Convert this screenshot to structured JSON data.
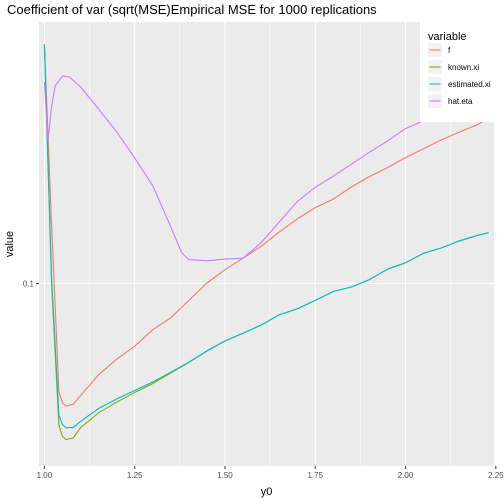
{
  "chart_data": {
    "type": "line",
    "title": "Coefficient of var (sqrt(MSE)Empirical MSE for 1000 replications",
    "xlabel": "y0",
    "ylabel": "value",
    "xlim": [
      0.985,
      2.245
    ],
    "y_scale": "log10",
    "ylim": [
      0.05,
      0.27
    ],
    "x_ticks": [
      1.0,
      1.25,
      1.5,
      1.75,
      2.0,
      2.25
    ],
    "x_tick_labels": [
      "1.00",
      "1.25",
      "1.50",
      "1.75",
      "2.00",
      "2.25"
    ],
    "y_ticks": [
      0.1
    ],
    "y_tick_labels": [
      "0.1"
    ],
    "grid": true,
    "legend": {
      "title": "variable",
      "position": "top-right"
    },
    "series": [
      {
        "name": "f",
        "color": "#F8766D",
        "x": [
          1.0,
          1.02,
          1.04,
          1.05,
          1.06,
          1.08,
          1.1,
          1.15,
          1.2,
          1.25,
          1.3,
          1.35,
          1.4,
          1.45,
          1.5,
          1.55,
          1.6,
          1.65,
          1.7,
          1.75,
          1.8,
          1.85,
          1.9,
          1.95,
          2.0,
          2.05,
          2.1,
          2.15,
          2.2,
          2.23
        ],
        "y": [
          0.248,
          0.125,
          0.0663,
          0.0635,
          0.0628,
          0.0632,
          0.0653,
          0.0707,
          0.075,
          0.0788,
          0.0839,
          0.0878,
          0.0938,
          0.1002,
          0.1054,
          0.1101,
          0.1152,
          0.1215,
          0.1278,
          0.1334,
          0.1378,
          0.1443,
          0.1501,
          0.1553,
          0.1613,
          0.1668,
          0.1727,
          0.1778,
          0.1829,
          0.1876
        ]
      },
      {
        "name": "known.xi",
        "color": "#7CAE00",
        "x": [
          1.0,
          1.02,
          1.04,
          1.05,
          1.06,
          1.08,
          1.1,
          1.15,
          1.2,
          1.25,
          1.3,
          1.35,
          1.4,
          1.45,
          1.5,
          1.55,
          1.6,
          1.65,
          1.7,
          1.75,
          1.8,
          1.85,
          1.9,
          1.95,
          2.0,
          2.05,
          2.1,
          2.15,
          2.2,
          2.23
        ],
        "y": [
          0.248,
          0.1,
          0.0584,
          0.0559,
          0.0553,
          0.0556,
          0.0578,
          0.0612,
          0.0637,
          0.0661,
          0.0684,
          0.0712,
          0.0741,
          0.0774,
          0.0804,
          0.0828,
          0.0854,
          0.0888,
          0.0908,
          0.0938,
          0.097,
          0.0987,
          0.1015,
          0.1056,
          0.1082,
          0.1122,
          0.1145,
          0.1176,
          0.1201,
          0.1213
        ]
      },
      {
        "name": "estimated.xi",
        "color": "#00BFC4",
        "x": [
          1.0,
          1.02,
          1.04,
          1.05,
          1.06,
          1.08,
          1.1,
          1.15,
          1.2,
          1.25,
          1.3,
          1.35,
          1.4,
          1.45,
          1.5,
          1.55,
          1.6,
          1.65,
          1.7,
          1.75,
          1.8,
          1.85,
          1.9,
          1.95,
          2.0,
          2.05,
          2.1,
          2.15,
          2.2,
          2.23
        ],
        "y": [
          0.248,
          0.102,
          0.0607,
          0.0585,
          0.0578,
          0.0579,
          0.0592,
          0.0622,
          0.0645,
          0.0666,
          0.0688,
          0.0714,
          0.0742,
          0.0774,
          0.0804,
          0.0828,
          0.0854,
          0.0888,
          0.0908,
          0.0938,
          0.097,
          0.0987,
          0.1015,
          0.1056,
          0.1082,
          0.1122,
          0.1145,
          0.1176,
          0.1201,
          0.1213
        ]
      },
      {
        "name": "hat.eta",
        "color": "#C77CFF",
        "x": [
          1.0,
          1.01,
          1.02,
          1.03,
          1.05,
          1.07,
          1.1,
          1.15,
          1.2,
          1.25,
          1.3,
          1.35,
          1.38,
          1.4,
          1.45,
          1.5,
          1.55,
          1.6,
          1.65,
          1.7,
          1.75,
          1.8,
          1.85,
          1.9,
          1.95,
          2.0,
          2.05,
          2.1,
          2.15,
          2.2,
          2.23
        ],
        "y": [
          0.215,
          0.172,
          0.196,
          0.212,
          0.22,
          0.219,
          0.211,
          0.194,
          0.178,
          0.161,
          0.145,
          0.124,
          0.1125,
          0.1095,
          0.109,
          0.1097,
          0.1101,
          0.1168,
          0.1262,
          0.1365,
          0.1441,
          0.1504,
          0.1573,
          0.1646,
          0.1719,
          0.1801,
          0.1856,
          0.1924,
          0.1987,
          0.2035,
          0.2047
        ]
      }
    ]
  }
}
